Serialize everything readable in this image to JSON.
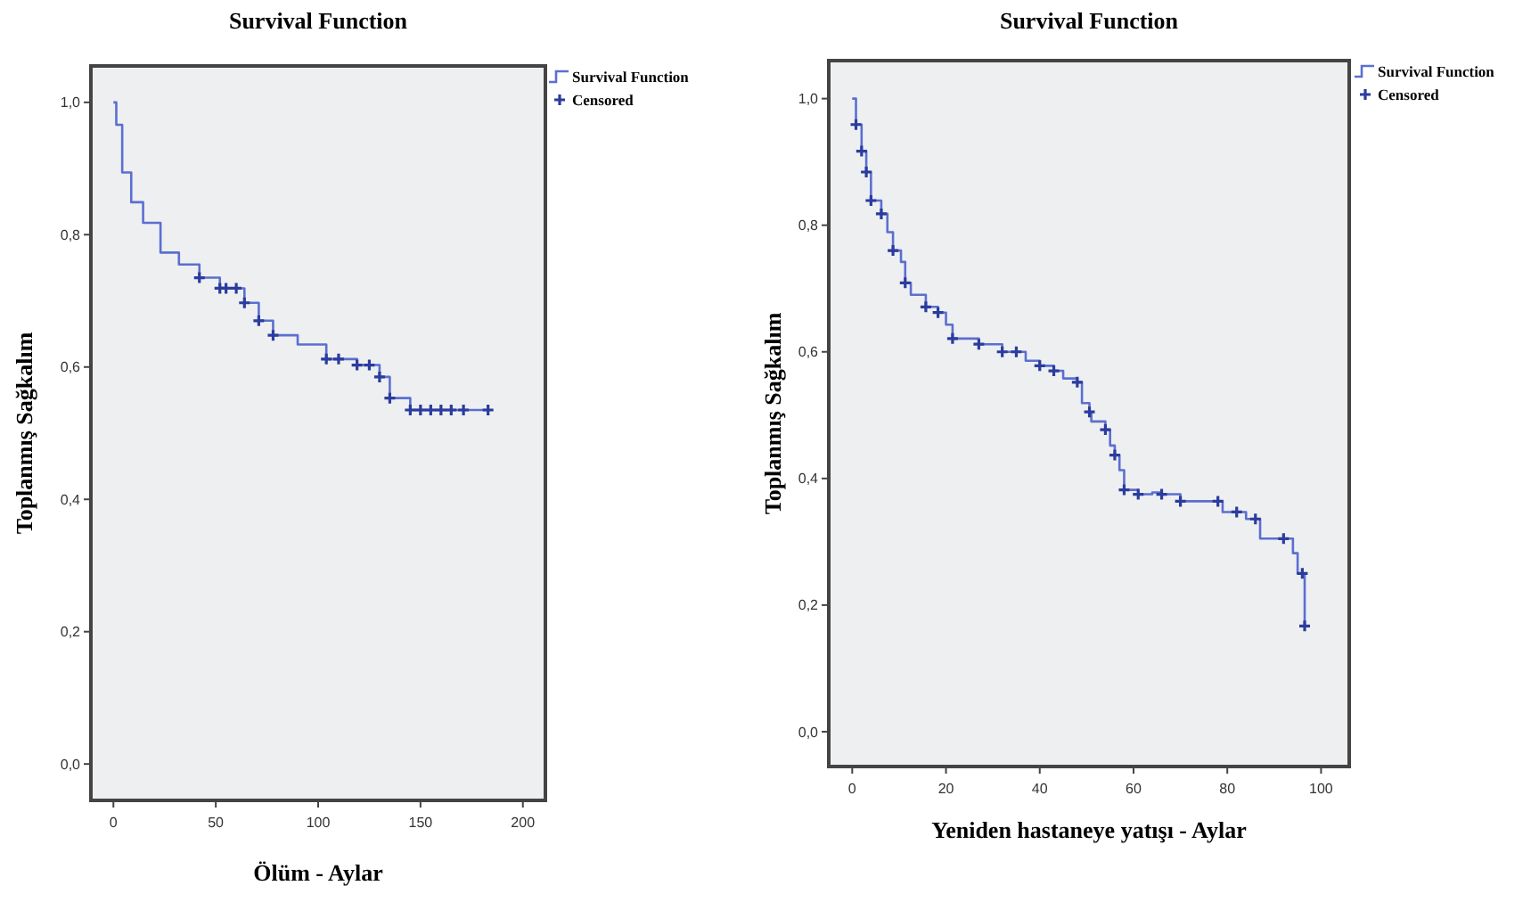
{
  "chart_data": [
    {
      "type": "step",
      "title": "Survival Function",
      "xlabel": "Ölüm - Aylar",
      "ylabel": "Toplanmış Sağkalım",
      "legend": "right",
      "xlim": [
        -11,
        211
      ],
      "ylim": [
        -0.055,
        1.055
      ],
      "xticks": [
        0,
        50,
        100,
        150,
        200
      ],
      "yticks": [
        {
          "value": 0,
          "label": "0,0"
        },
        {
          "value": 0.2,
          "label": "0,2"
        },
        {
          "value": 0.4,
          "label": "0,4"
        },
        {
          "value": 0.6,
          "label": "0,6"
        },
        {
          "value": 0.8,
          "label": "0,8"
        },
        {
          "value": 1,
          "label": "1,0"
        }
      ],
      "series": [
        {
          "name": "Survival Function",
          "color": "#5b6fd0",
          "x": [
            0,
            1.4,
            4.3,
            8.7,
            14.5,
            23,
            32,
            42,
            52,
            64,
            71,
            78,
            90,
            104,
            119,
            130,
            135,
            145,
            171,
            183
          ],
          "values": [
            1.0,
            0.966,
            0.894,
            0.849,
            0.818,
            0.773,
            0.755,
            0.735,
            0.719,
            0.697,
            0.67,
            0.648,
            0.634,
            0.612,
            0.603,
            0.585,
            0.553,
            0.535,
            0.535,
            0.535
          ]
        },
        {
          "name": "Censored",
          "type": "scatter",
          "marker": "cross",
          "color": "#2b3c9e",
          "x": [
            42,
            52,
            55,
            60,
            64,
            71,
            78,
            104,
            110,
            119,
            125,
            130,
            135,
            145,
            150,
            155,
            160,
            165,
            171,
            183
          ],
          "values": [
            0.735,
            0.719,
            0.719,
            0.719,
            0.697,
            0.67,
            0.648,
            0.612,
            0.612,
            0.603,
            0.603,
            0.585,
            0.553,
            0.535,
            0.535,
            0.535,
            0.535,
            0.535,
            0.535,
            0.535
          ]
        }
      ]
    },
    {
      "type": "step",
      "title": "Survival Function",
      "xlabel": "Yeniden hastaneye yatışı - Aylar",
      "ylabel": "Toplanmış Sağkalım",
      "legend": "right",
      "xlim": [
        -5,
        106
      ],
      "ylim": [
        -0.055,
        1.06
      ],
      "xticks": [
        0,
        20,
        40,
        60,
        80,
        100
      ],
      "yticks": [
        {
          "value": 0,
          "label": "0,0"
        },
        {
          "value": 0.2,
          "label": "0,2"
        },
        {
          "value": 0.4,
          "label": "0,4"
        },
        {
          "value": 0.6,
          "label": "0,6"
        },
        {
          "value": 0.8,
          "label": "0,8"
        },
        {
          "value": 1,
          "label": "1,0"
        }
      ],
      "series": [
        {
          "name": "Survival Function",
          "color": "#5b6fd0",
          "x": [
            0,
            0.8,
            2,
            3,
            4,
            6.2,
            7.5,
            8.7,
            10.4,
            11.3,
            12.5,
            15.7,
            18.3,
            20,
            21.4,
            27,
            32,
            37,
            40,
            43,
            45,
            48,
            49,
            50.6,
            51,
            54,
            55,
            56,
            57,
            58,
            61,
            64,
            66,
            70,
            78,
            79,
            84,
            87,
            92,
            94,
            95,
            96,
            96.5
          ],
          "values": [
            1.0,
            0.959,
            0.917,
            0.884,
            0.839,
            0.818,
            0.789,
            0.76,
            0.742,
            0.709,
            0.69,
            0.671,
            0.662,
            0.643,
            0.621,
            0.612,
            0.6,
            0.586,
            0.578,
            0.57,
            0.558,
            0.552,
            0.519,
            0.505,
            0.49,
            0.477,
            0.452,
            0.437,
            0.413,
            0.382,
            0.375,
            0.378,
            0.375,
            0.364,
            0.364,
            0.347,
            0.336,
            0.305,
            0.305,
            0.282,
            0.25,
            0.25,
            0.167
          ]
        },
        {
          "name": "Censored",
          "type": "scatter",
          "marker": "cross",
          "color": "#2b3c9e",
          "x": [
            0.8,
            2,
            3,
            4,
            6.2,
            8.7,
            11.3,
            15.7,
            18.3,
            21.4,
            27,
            32,
            35,
            40,
            43,
            48,
            50.6,
            54,
            56,
            58,
            61,
            66,
            70,
            78,
            82,
            86,
            92,
            96,
            96.5
          ],
          "values": [
            0.959,
            0.917,
            0.884,
            0.839,
            0.818,
            0.76,
            0.709,
            0.671,
            0.662,
            0.621,
            0.612,
            0.6,
            0.6,
            0.578,
            0.57,
            0.552,
            0.505,
            0.477,
            0.437,
            0.382,
            0.375,
            0.375,
            0.364,
            0.364,
            0.347,
            0.336,
            0.305,
            0.25,
            0.167
          ]
        }
      ]
    }
  ]
}
